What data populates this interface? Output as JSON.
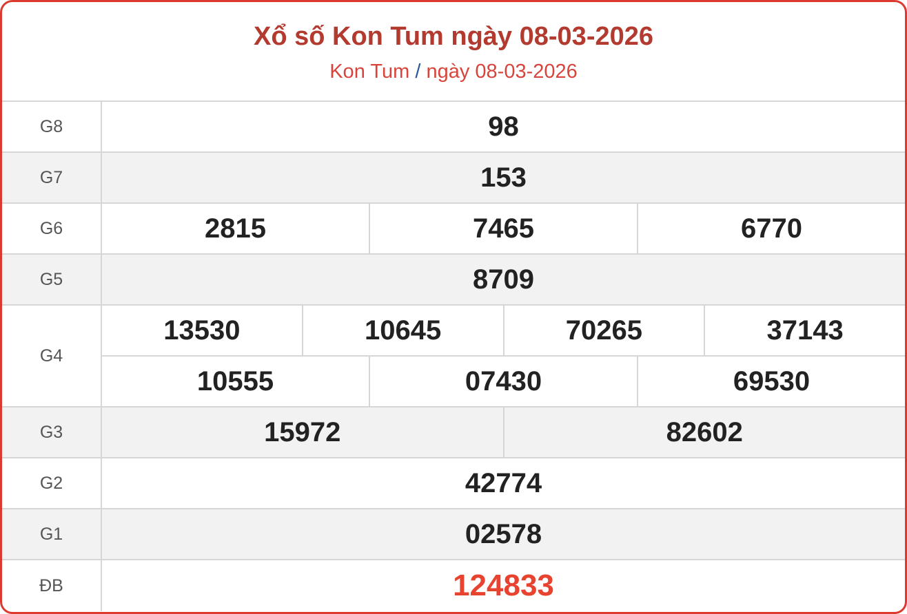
{
  "header": {
    "title": "Xổ số Kon Tum ngày 08-03-2026",
    "breadcrumb": {
      "province": "Kon Tum",
      "separator": "/",
      "date": "ngày 08-03-2026"
    }
  },
  "colors": {
    "border": "#dc3a30",
    "title": "#b23a2f",
    "special": "#e8432f",
    "separator": "#2a5699"
  },
  "prizes": [
    {
      "label": "G8",
      "rows": [
        [
          "98"
        ]
      ]
    },
    {
      "label": "G7",
      "rows": [
        [
          "153"
        ]
      ]
    },
    {
      "label": "G6",
      "rows": [
        [
          "2815",
          "7465",
          "6770"
        ]
      ]
    },
    {
      "label": "G5",
      "rows": [
        [
          "8709"
        ]
      ]
    },
    {
      "label": "G4",
      "rows": [
        [
          "13530",
          "10645",
          "70265",
          "37143"
        ],
        [
          "10555",
          "07430",
          "69530"
        ]
      ]
    },
    {
      "label": "G3",
      "rows": [
        [
          "15972",
          "82602"
        ]
      ]
    },
    {
      "label": "G2",
      "rows": [
        [
          "42774"
        ]
      ]
    },
    {
      "label": "G1",
      "rows": [
        [
          "02578"
        ]
      ]
    },
    {
      "label": "ĐB",
      "rows": [
        [
          "124833"
        ]
      ]
    }
  ]
}
